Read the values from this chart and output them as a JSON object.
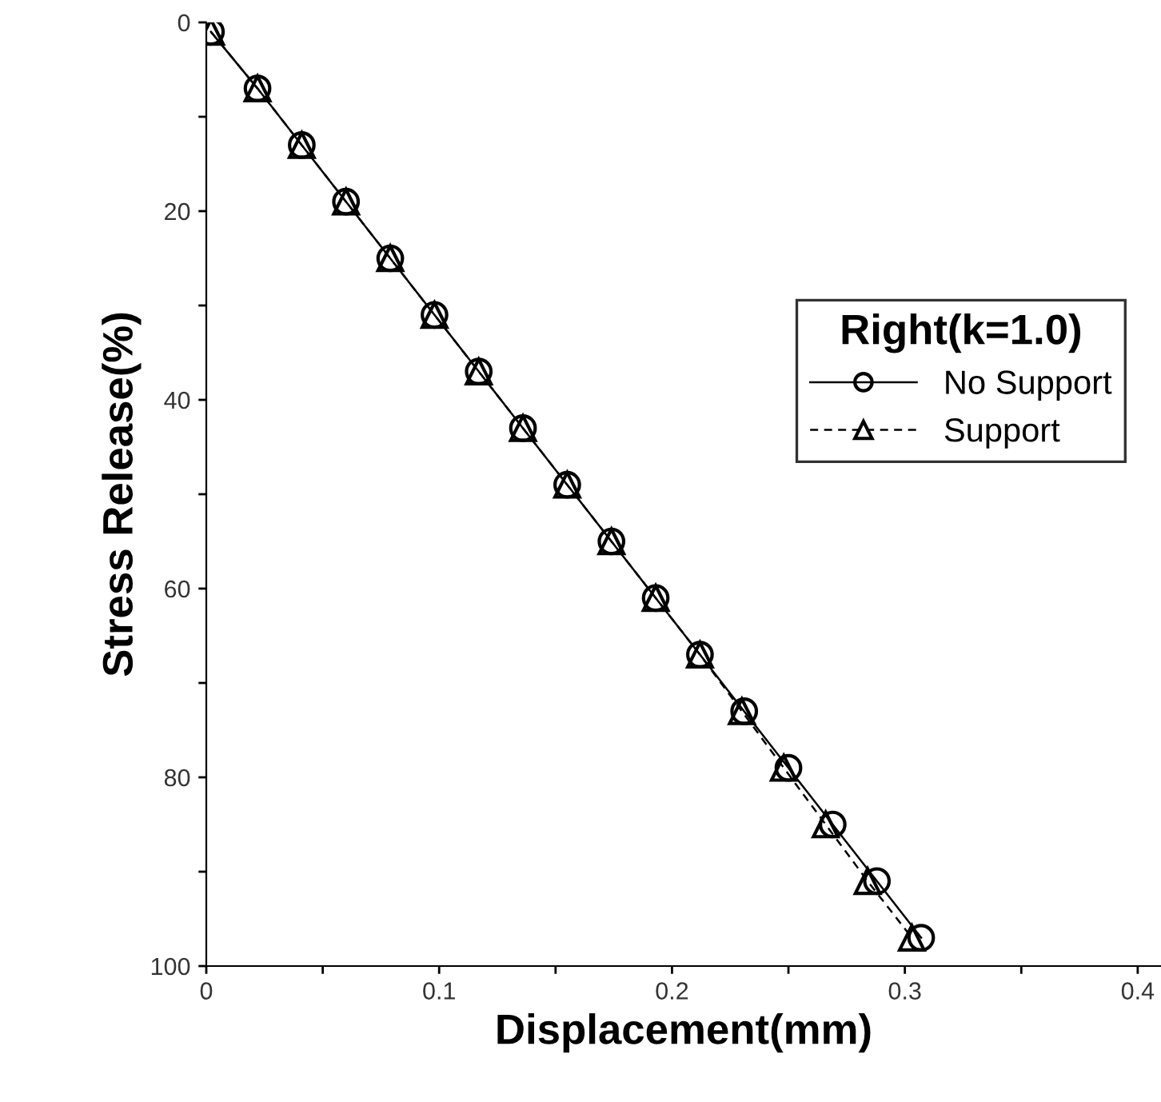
{
  "chart_data": {
    "type": "line",
    "xlabel": "Displacement(mm)",
    "ylabel": "Stress Release(%)",
    "legend_title": "Right(k=1.0)",
    "legend": "right",
    "xlim": [
      0,
      0.41
    ],
    "ylim": [
      100,
      0
    ],
    "xticks": [
      0,
      {
        "value": 0.05,
        "label": null
      },
      0.1,
      {
        "value": 0.15,
        "label": null
      },
      0.2,
      {
        "value": 0.25,
        "label": null
      },
      0.3,
      {
        "value": 0.35,
        "label": null
      },
      0.4
    ],
    "yticks": [
      0,
      {
        "value": 10,
        "label": null
      },
      20,
      {
        "value": 30,
        "label": null
      },
      40,
      {
        "value": 50,
        "label": null
      },
      60,
      {
        "value": 70,
        "label": null
      },
      80,
      {
        "value": 90,
        "label": null
      },
      100
    ],
    "grid": false,
    "series": [
      {
        "name": "No Support",
        "color": "#000000",
        "marker": "circle",
        "line_style": "solid",
        "x": [
          0.002,
          0.022,
          0.041,
          0.06,
          0.079,
          0.098,
          0.117,
          0.136,
          0.155,
          0.174,
          0.193,
          0.212,
          0.231,
          0.25,
          0.269,
          0.288,
          0.307
        ],
        "values": [
          1,
          7,
          13,
          19,
          25,
          31,
          37,
          43,
          49,
          55,
          61,
          67,
          73,
          79,
          85,
          91,
          97
        ]
      },
      {
        "name": "Support",
        "color": "#000000",
        "marker": "triangle",
        "line_style": "dashed",
        "x": [
          0.002,
          0.022,
          0.041,
          0.06,
          0.079,
          0.098,
          0.117,
          0.136,
          0.155,
          0.174,
          0.193,
          0.212,
          0.23,
          0.248,
          0.266,
          0.284,
          0.303
        ],
        "values": [
          1,
          7,
          13,
          19,
          25,
          31,
          37,
          43,
          49,
          55,
          61,
          67,
          73,
          79,
          85,
          91,
          97
        ]
      }
    ]
  }
}
